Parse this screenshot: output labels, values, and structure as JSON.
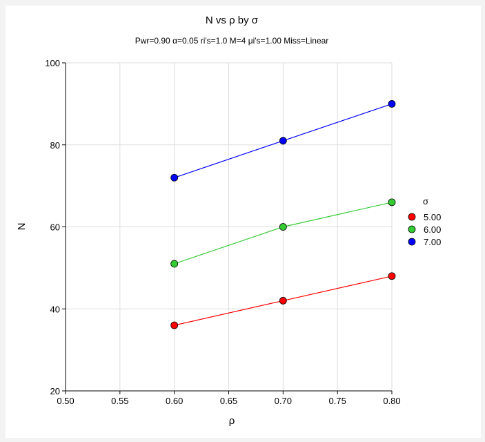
{
  "chart_data": {
    "type": "line",
    "title": "N vs ρ by σ",
    "subtitle": "Pwr=0.90 α=0.05 ri's=1.0 M=4 μi's=1.00 Miss=Linear",
    "xlabel": "ρ",
    "ylabel": "N",
    "xlim": [
      0.5,
      0.8
    ],
    "ylim": [
      20,
      100
    ],
    "xticks": [
      "0.50",
      "0.55",
      "0.60",
      "0.65",
      "0.70",
      "0.75",
      "0.80"
    ],
    "yticks": [
      "20",
      "40",
      "60",
      "80",
      "100"
    ],
    "grid": true,
    "legend_title": "σ",
    "legend_position": "right",
    "x": [
      0.6,
      0.7,
      0.8
    ],
    "series": [
      {
        "name": "5.00",
        "values": [
          36,
          42,
          48
        ],
        "color": "#ff0000"
      },
      {
        "name": "6.00",
        "values": [
          51,
          60,
          66
        ],
        "color": "#33cc33"
      },
      {
        "name": "7.00",
        "values": [
          72,
          81,
          90
        ],
        "color": "#0000ff"
      }
    ]
  }
}
